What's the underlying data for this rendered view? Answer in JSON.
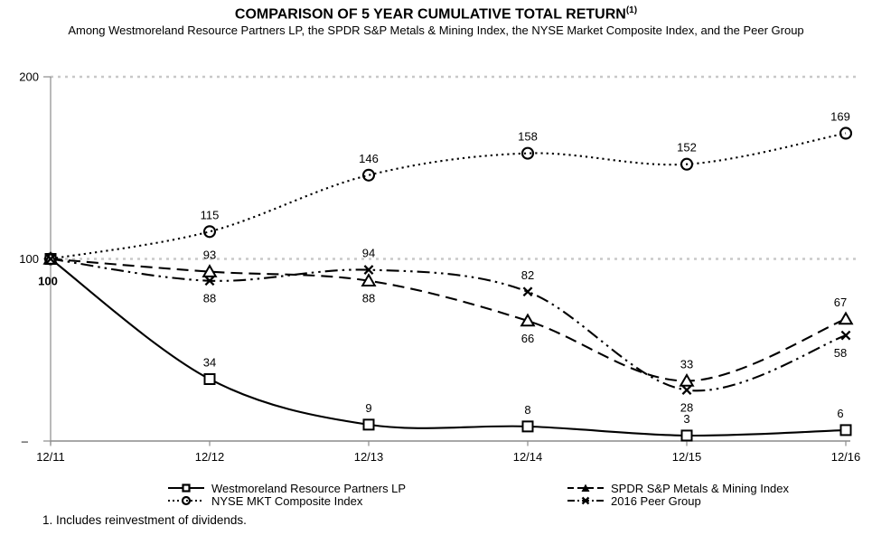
{
  "header": {
    "title": "COMPARISON OF 5 YEAR CUMULATIVE TOTAL RETURN",
    "title_superscript": "(1)",
    "subtitle": "Among Westmoreland Resource Partners LP, the SPDR S&P Metals & Mining Index, the NYSE Market Composite Index, and the Peer Group"
  },
  "chart_data": {
    "type": "line",
    "title": "COMPARISON OF 5 YEAR CUMULATIVE TOTAL RETURN(1)",
    "categories": [
      "12/11",
      "12/12",
      "12/13",
      "12/14",
      "12/15",
      "12/16"
    ],
    "series": [
      {
        "name": "Westmoreland Resource Partners LP",
        "marker": "square",
        "line_style": "solid",
        "values": [
          100,
          34,
          9,
          8,
          3,
          6
        ],
        "label_pos": [
          "below",
          "above",
          "above",
          "above",
          "above",
          "above"
        ]
      },
      {
        "name": "SPDR S&P Metals & Mining Index",
        "marker": "triangle",
        "line_style": "dashed",
        "values": [
          100,
          93,
          88,
          66,
          33,
          67
        ],
        "label_pos": [
          null,
          "above",
          "below",
          "below",
          "above",
          "above"
        ]
      },
      {
        "name": "NYSE MKT Composite Index",
        "marker": "circle",
        "line_style": "dotted",
        "values": [
          100,
          115,
          146,
          158,
          152,
          169
        ],
        "label_pos": [
          null,
          "above",
          "above",
          "above",
          "above",
          "above"
        ]
      },
      {
        "name": "2016 Peer Group",
        "marker": "x",
        "line_style": "dash-dot-dot",
        "values": [
          100,
          88,
          94,
          82,
          28,
          58
        ],
        "label_pos": [
          null,
          "below",
          "above",
          "above",
          "below",
          "below"
        ]
      }
    ],
    "y_axis": {
      "range": [
        0,
        200
      ],
      "ticks": [
        {
          "value": 200,
          "label": "200"
        },
        {
          "value": 100,
          "label": "100"
        },
        {
          "value": 0,
          "label": "–"
        }
      ],
      "gridlines": [
        200,
        100
      ]
    },
    "grid": true,
    "legend_position": "bottom"
  },
  "legend": {
    "columns": [
      [
        0,
        2
      ],
      [
        1,
        3
      ]
    ]
  },
  "colors": {
    "series": "#000000",
    "grid": "#c8c8c8",
    "axis": "#8c8c8c",
    "text": "#000000",
    "background": "#ffffff"
  },
  "footnote": "1. Includes reinvestment of dividends."
}
